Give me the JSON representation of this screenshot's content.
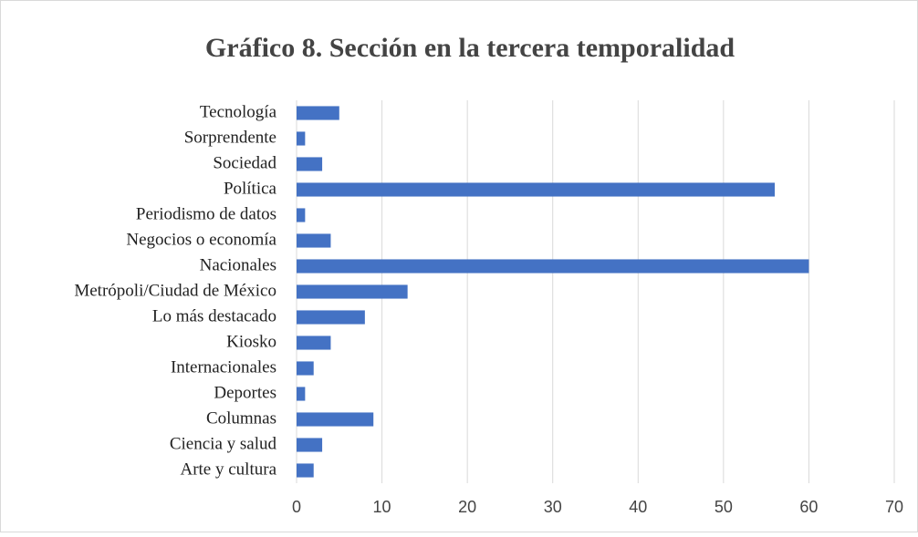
{
  "chart_data": {
    "type": "bar",
    "orientation": "horizontal",
    "title": "Gráfico 8. Sección en la tercera temporalidad",
    "categories": [
      "Tecnología",
      "Sorprendente",
      "Sociedad",
      "Política",
      "Periodismo de datos",
      "Negocios o economía",
      "Nacionales",
      "Metrópoli/Ciudad de México",
      "Lo más destacado",
      "Kiosko",
      "Internacionales",
      "Deportes",
      "Columnas",
      "Ciencia y salud",
      "Arte y cultura"
    ],
    "values": [
      5,
      1,
      3,
      56,
      1,
      4,
      60,
      13,
      8,
      4,
      2,
      1,
      9,
      3,
      2
    ],
    "color": "#4472c4",
    "xlim": [
      0,
      70
    ],
    "xticks": [
      0,
      10,
      20,
      30,
      40,
      50,
      60,
      70
    ],
    "grid": true
  }
}
